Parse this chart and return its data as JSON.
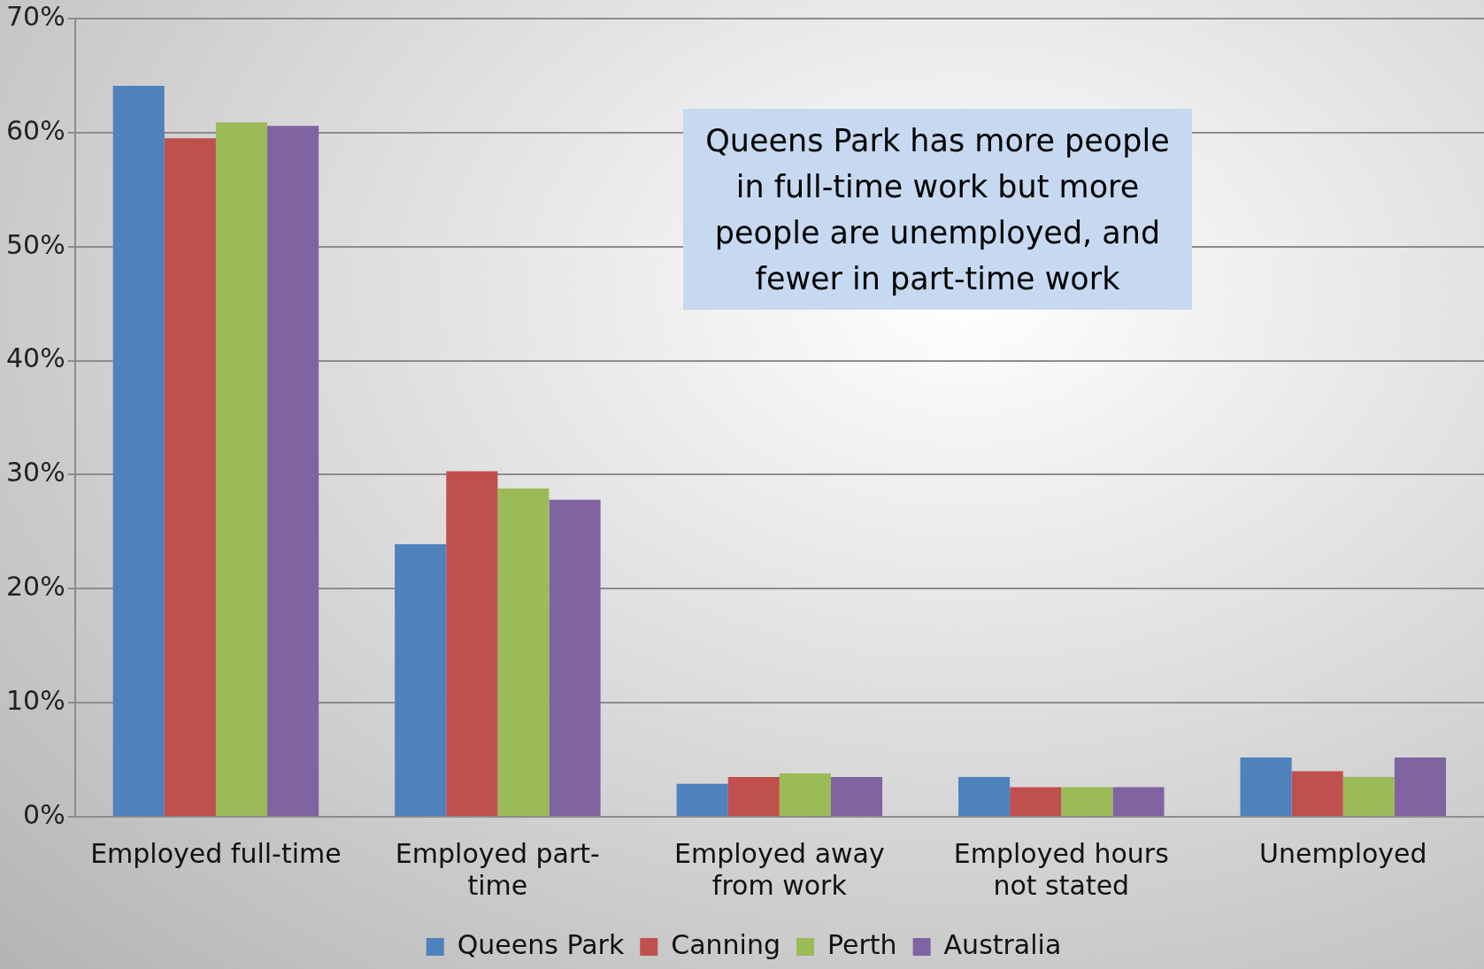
{
  "chart_data": {
    "type": "bar",
    "categories": [
      "Employed full-time",
      "Employed part-time",
      "Employed away from work",
      "Employed hours not stated",
      "Unemployed"
    ],
    "series": [
      {
        "name": "Queens Park",
        "color": "#4f81bd",
        "values": [
          64.1,
          23.9,
          2.9,
          3.5,
          5.2
        ]
      },
      {
        "name": "Canning",
        "color": "#c0504d",
        "values": [
          59.5,
          30.3,
          3.5,
          2.6,
          4.0
        ]
      },
      {
        "name": "Perth",
        "color": "#9bbb59",
        "values": [
          60.9,
          28.8,
          3.8,
          2.6,
          3.5
        ]
      },
      {
        "name": "Australia",
        "color": "#8064a2",
        "values": [
          60.6,
          27.8,
          3.5,
          2.6,
          5.2
        ]
      }
    ],
    "ylim": [
      0,
      70
    ],
    "yticks": [
      {
        "value": 0,
        "label": "0%"
      },
      {
        "value": 10,
        "label": "10%"
      },
      {
        "value": 20,
        "label": "20%"
      },
      {
        "value": 30,
        "label": "30%"
      },
      {
        "value": 40,
        "label": "40%"
      },
      {
        "value": 50,
        "label": "50%"
      },
      {
        "value": 60,
        "label": "60%"
      },
      {
        "value": 70,
        "label": "70%"
      }
    ],
    "grid": "y",
    "legend": "bottom",
    "annotations": [
      "Queens Park has more people in full-time work but more people are unemployed, and fewer in part-time work"
    ]
  }
}
